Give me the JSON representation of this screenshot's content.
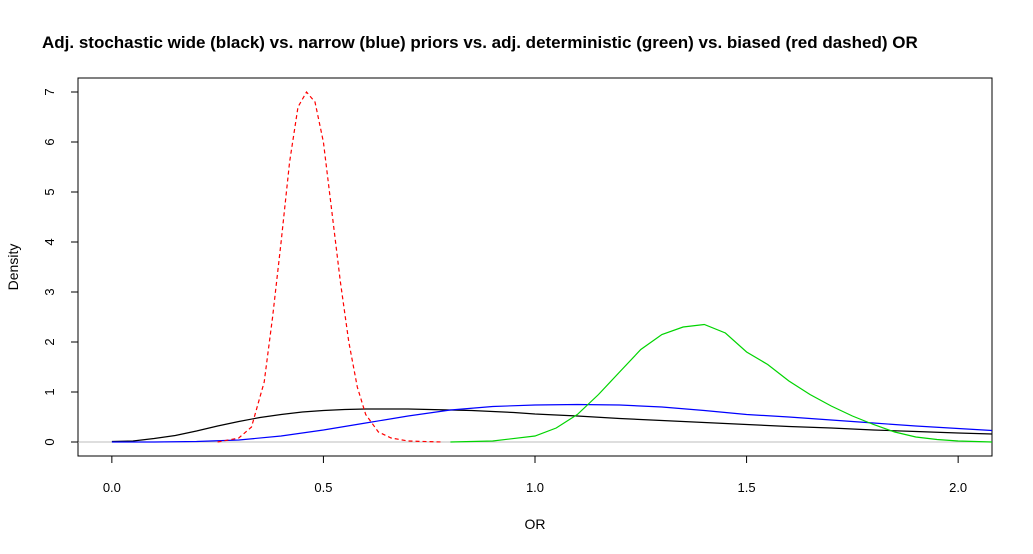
{
  "chart_data": {
    "type": "line",
    "title": "Adj. stochastic wide (black) vs. narrow (blue) priors vs. adj. deterministic (green) vs. biased (red dashed) OR",
    "xlabel": "OR",
    "ylabel": "Density",
    "xlim": [
      -0.08,
      2.08
    ],
    "ylim": [
      -0.28,
      7.28
    ],
    "x_ticks": [
      0.0,
      0.5,
      1.0,
      1.5,
      2.0
    ],
    "x_tick_labels": [
      "0.0",
      "0.5",
      "1.0",
      "1.5",
      "2.0"
    ],
    "y_ticks": [
      0,
      1,
      2,
      3,
      4,
      5,
      6,
      7
    ],
    "y_tick_labels": [
      "0",
      "1",
      "2",
      "3",
      "4",
      "5",
      "6",
      "7"
    ],
    "grid": false,
    "reference_line": {
      "y": 0,
      "color": "#bebebe"
    },
    "series": [
      {
        "name": "Adj. stochastic wide (black)",
        "color": "#000000",
        "dashed": false,
        "x": [
          0.0,
          0.05,
          0.1,
          0.15,
          0.2,
          0.25,
          0.3,
          0.35,
          0.4,
          0.45,
          0.5,
          0.55,
          0.6,
          0.65,
          0.7,
          0.75,
          0.8,
          0.85,
          0.9,
          0.95,
          1.0,
          1.1,
          1.2,
          1.3,
          1.4,
          1.5,
          1.6,
          1.7,
          1.8,
          1.9,
          2.0,
          2.08
        ],
        "y": [
          0.01,
          0.02,
          0.07,
          0.13,
          0.22,
          0.32,
          0.41,
          0.49,
          0.55,
          0.6,
          0.63,
          0.65,
          0.66,
          0.66,
          0.66,
          0.65,
          0.64,
          0.63,
          0.61,
          0.59,
          0.56,
          0.52,
          0.47,
          0.43,
          0.39,
          0.35,
          0.31,
          0.28,
          0.24,
          0.21,
          0.18,
          0.16
        ]
      },
      {
        "name": "Narrow priors (blue)",
        "color": "#0000ff",
        "dashed": false,
        "x": [
          0.0,
          0.1,
          0.2,
          0.3,
          0.4,
          0.5,
          0.6,
          0.7,
          0.8,
          0.9,
          1.0,
          1.1,
          1.2,
          1.3,
          1.4,
          1.5,
          1.6,
          1.7,
          1.8,
          1.9,
          2.0,
          2.08
        ],
        "y": [
          0.0,
          0.0,
          0.01,
          0.04,
          0.12,
          0.24,
          0.38,
          0.52,
          0.64,
          0.71,
          0.74,
          0.75,
          0.74,
          0.7,
          0.63,
          0.55,
          0.5,
          0.44,
          0.38,
          0.32,
          0.27,
          0.23
        ]
      },
      {
        "name": "Adj. deterministic (green)",
        "color": "#00d400",
        "dashed": false,
        "x": [
          0.8,
          0.9,
          1.0,
          1.05,
          1.1,
          1.15,
          1.2,
          1.25,
          1.3,
          1.35,
          1.4,
          1.45,
          1.5,
          1.55,
          1.6,
          1.65,
          1.7,
          1.75,
          1.8,
          1.85,
          1.9,
          1.95,
          2.0,
          2.08
        ],
        "y": [
          0.0,
          0.02,
          0.12,
          0.28,
          0.55,
          0.95,
          1.4,
          1.85,
          2.15,
          2.3,
          2.35,
          2.18,
          1.8,
          1.55,
          1.22,
          0.95,
          0.72,
          0.52,
          0.35,
          0.2,
          0.1,
          0.05,
          0.02,
          0.0
        ]
      },
      {
        "name": "Biased (red dashed)",
        "color": "#ff0000",
        "dashed": true,
        "x": [
          0.25,
          0.3,
          0.33,
          0.36,
          0.38,
          0.4,
          0.42,
          0.44,
          0.46,
          0.48,
          0.5,
          0.52,
          0.54,
          0.56,
          0.58,
          0.6,
          0.63,
          0.66,
          0.7,
          0.78
        ],
        "y": [
          0.0,
          0.08,
          0.3,
          1.2,
          2.5,
          4.0,
          5.6,
          6.7,
          7.0,
          6.8,
          6.0,
          4.6,
          3.2,
          2.0,
          1.1,
          0.55,
          0.2,
          0.08,
          0.02,
          0.0
        ]
      }
    ]
  }
}
